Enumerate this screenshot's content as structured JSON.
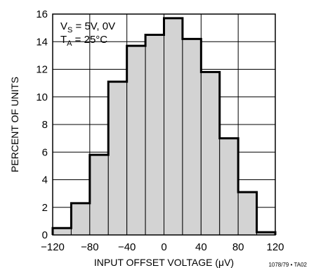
{
  "chart_data": {
    "type": "bar",
    "title": "",
    "xlabel": "INPUT OFFSET VOLTAGE (μV)",
    "ylabel": "PERCENT OF UNITS",
    "xlim": [
      -120,
      120
    ],
    "ylim": [
      0,
      16
    ],
    "grid": true,
    "x_ticks": [
      "-120",
      "-80",
      "-40",
      "0",
      "40",
      "80",
      "120"
    ],
    "y_ticks": [
      "0",
      "2",
      "4",
      "6",
      "8",
      "10",
      "12",
      "14",
      "16"
    ],
    "bin_edges": [
      -120,
      -100,
      -80,
      -60,
      -40,
      -20,
      0,
      20,
      40,
      60,
      80,
      100,
      120
    ],
    "values": [
      0.5,
      2.3,
      5.8,
      11.1,
      13.7,
      14.5,
      15.7,
      14.2,
      11.8,
      7.0,
      3.1,
      0.2
    ],
    "fill_color": "#d3d3d3",
    "annotations": {
      "line1_main": "V",
      "line1_sub": "S",
      "line1_rest": " = 5V, 0V",
      "line2_main": "T",
      "line2_sub": "A",
      "line2_rest": " = 25°C"
    },
    "figure_code": "1078/79 • TA02"
  }
}
